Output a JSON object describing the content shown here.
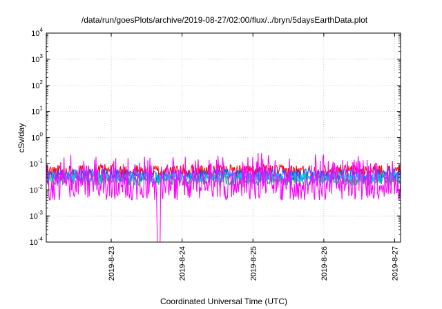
{
  "chart_data": {
    "type": "line",
    "title": "/data/run/goesPlots/archive/2019-08-27/02:00/flux/../bryn/5daysEarthData.plot",
    "xlabel": "Coordinated Universal Time (UTC)",
    "ylabel": "cSv/day",
    "y_scale": "log",
    "ylim": [
      0.0001,
      10000
    ],
    "yticks": [
      {
        "value": 0.0001,
        "base": "10",
        "exp": "-4"
      },
      {
        "value": 0.001,
        "base": "10",
        "exp": "-3"
      },
      {
        "value": 0.01,
        "base": "10",
        "exp": "-2"
      },
      {
        "value": 0.1,
        "base": "10",
        "exp": "-1"
      },
      {
        "value": 1,
        "base": "10",
        "exp": "0"
      },
      {
        "value": 10,
        "base": "10",
        "exp": "1"
      },
      {
        "value": 100,
        "base": "10",
        "exp": "2"
      },
      {
        "value": 1000,
        "base": "10",
        "exp": "3"
      },
      {
        "value": 10000,
        "base": "10",
        "exp": "4"
      }
    ],
    "xlim": [
      "2019-08-22 02:00",
      "2019-08-27 02:00"
    ],
    "xticks": [
      {
        "value": "2019-08-23 00:00",
        "label": "2019-8-23"
      },
      {
        "value": "2019-08-24 00:00",
        "label": "2019-8-24"
      },
      {
        "value": "2019-08-25 00:00",
        "label": "2019-8-25"
      },
      {
        "value": "2019-08-26 00:00",
        "label": "2019-8-26"
      },
      {
        "value": "2019-08-27 00:00",
        "label": "2019-8-27"
      }
    ],
    "grid": true,
    "series": [
      {
        "color": "#ff0000",
        "base": 0.05,
        "spread": 0.35,
        "seed": 11
      },
      {
        "color": "#00c060",
        "base": 0.025,
        "spread": 0.3,
        "seed": 23
      },
      {
        "color": "#0060ff",
        "base": 0.038,
        "spread": 0.3,
        "seed": 37
      },
      {
        "color": "#00c8ff",
        "base": 0.03,
        "spread": 0.25,
        "seed": 41
      },
      {
        "color": "#ff00ff",
        "base": 0.011,
        "spread": 0.55,
        "seed": 53,
        "dropout": {
          "x": "2019-08-23 16:00",
          "value": 0.0001
        }
      }
    ]
  }
}
